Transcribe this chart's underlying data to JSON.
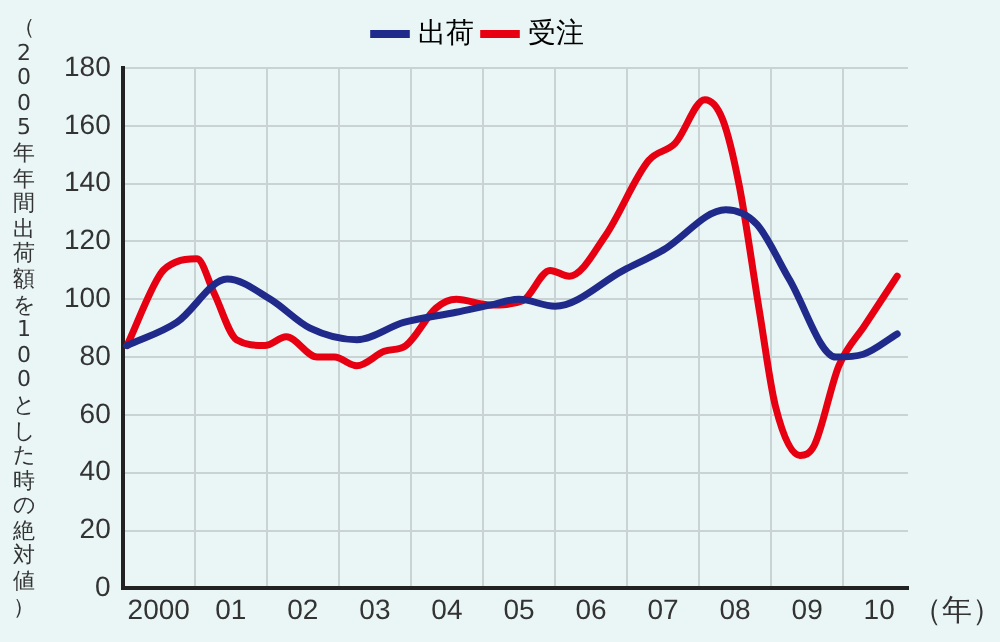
{
  "chart_data": {
    "type": "line",
    "ylabel": "（2005年年間出荷額を100とした時の絶対値）",
    "xlabel": "（年）",
    "xlim": [
      1999.5,
      2010.4
    ],
    "ylim": [
      0,
      180
    ],
    "xticks": [
      {
        "value": 2000,
        "label": "2000"
      },
      {
        "value": 2000.5,
        "label": null
      },
      {
        "value": 2001,
        "label": "01"
      },
      {
        "value": 2001.5,
        "label": null
      },
      {
        "value": 2002,
        "label": "02"
      },
      {
        "value": 2002.5,
        "label": null
      },
      {
        "value": 2003,
        "label": "03"
      },
      {
        "value": 2003.5,
        "label": null
      },
      {
        "value": 2004,
        "label": "04"
      },
      {
        "value": 2004.5,
        "label": null
      },
      {
        "value": 2005,
        "label": "05"
      },
      {
        "value": 2005.5,
        "label": null
      },
      {
        "value": 2006,
        "label": "06"
      },
      {
        "value": 2006.5,
        "label": null
      },
      {
        "value": 2007,
        "label": "07"
      },
      {
        "value": 2007.5,
        "label": null
      },
      {
        "value": 2008,
        "label": "08"
      },
      {
        "value": 2008.5,
        "label": null
      },
      {
        "value": 2009,
        "label": "09"
      },
      {
        "value": 2009.5,
        "label": null
      },
      {
        "value": 2010,
        "label": "10"
      }
    ],
    "yticks": [
      0,
      20,
      40,
      60,
      80,
      100,
      120,
      140,
      160,
      180
    ],
    "grid": true,
    "legend": "top",
    "marker": "none",
    "line_style": "solid",
    "series": [
      {
        "name": "出荷",
        "color": "#1f2a8a",
        "x": [
          1999.56,
          2000.25,
          2000.95,
          2001.55,
          2002.1,
          2002.75,
          2003.4,
          2004.13,
          2004.6,
          2005.0,
          2005.5,
          2006.45,
          2007.0,
          2007.87,
          2008.3,
          2008.75,
          2009.4,
          2009.78,
          2010.25
        ],
        "values": [
          84,
          92,
          107,
          100,
          90,
          86,
          92,
          95.5,
          98,
          100,
          97.6,
          110,
          117,
          131,
          126,
          107,
          80,
          81,
          88
        ]
      },
      {
        "name": "受注",
        "color": "#e60012",
        "x": [
          1999.56,
          2000.03,
          2000.25,
          2000.53,
          2000.77,
          2001.08,
          2001.47,
          2001.77,
          2002.2,
          2002.44,
          2002.75,
          2003.13,
          2003.43,
          2003.85,
          2004.13,
          2004.6,
          2005.05,
          2005.43,
          2005.7,
          2006.2,
          2006.8,
          2007.17,
          2007.58,
          2007.83,
          2008.06,
          2008.34,
          2008.56,
          2008.9,
          2009.1,
          2009.44,
          2009.8,
          2010.25
        ],
        "values": [
          84,
          109,
          113,
          114,
          102,
          86,
          84,
          87,
          80,
          80,
          77,
          82,
          84,
          97,
          100,
          98,
          99.5,
          110,
          108,
          122,
          148,
          154,
          169,
          162,
          139,
          95.5,
          63,
          46,
          49.5,
          77,
          91,
          108
        ]
      }
    ]
  }
}
